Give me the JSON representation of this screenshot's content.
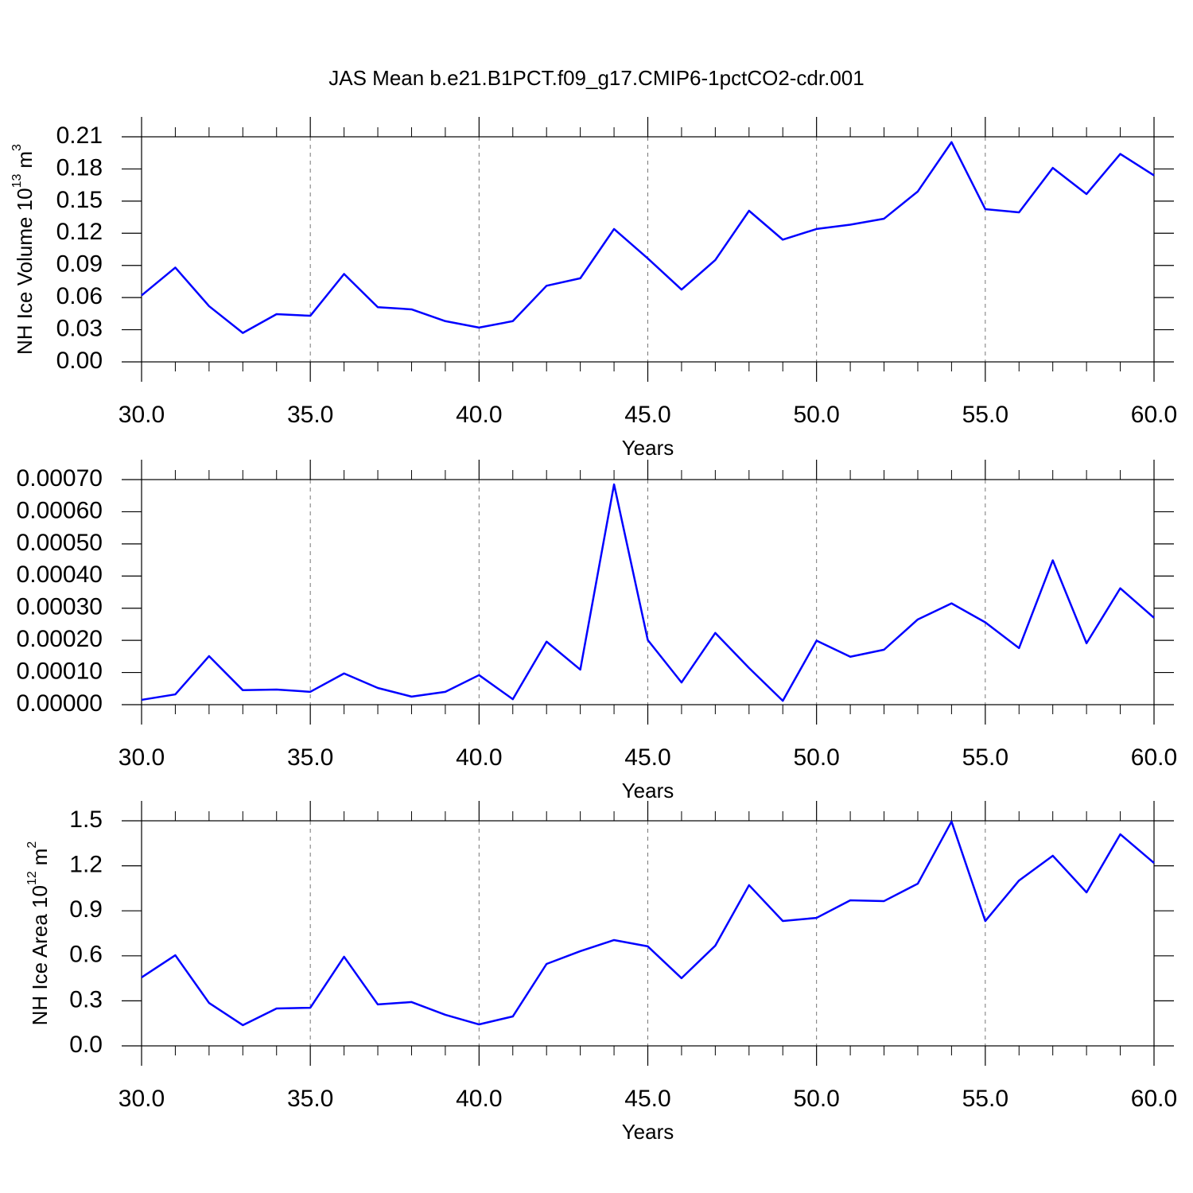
{
  "chart_data": [
    {
      "type": "line",
      "title": "JAS Mean b.e21.B1PCT.f09_g17.CMIP6-1pctCO2-cdr.001",
      "ylabel": {
        "text": "NH Ice Volume 10",
        "exponent": "13",
        "unit": "m",
        "unit_exponent": "3"
      },
      "xlabel": "Years",
      "x": [
        30,
        31,
        32,
        33,
        34,
        35,
        36,
        37,
        38,
        39,
        40,
        41,
        42,
        43,
        44,
        45,
        46,
        47,
        48,
        49,
        50,
        51,
        52,
        53,
        54,
        55,
        56,
        57,
        58,
        59,
        60
      ],
      "values": [
        0.062,
        0.088,
        0.052,
        0.027,
        0.0445,
        0.043,
        0.082,
        0.051,
        0.049,
        0.038,
        0.032,
        0.038,
        0.071,
        0.078,
        0.124,
        0.0965,
        0.0675,
        0.095,
        0.141,
        0.114,
        0.124,
        0.128,
        0.1336,
        0.159,
        0.205,
        0.1425,
        0.1395,
        0.181,
        0.1566,
        0.194,
        0.174
      ],
      "color": "#0000ff",
      "xlim": [
        30,
        60
      ],
      "xticks": [
        {
          "value": 30,
          "label": "30.0"
        },
        {
          "value": 35,
          "label": "35.0"
        },
        {
          "value": 40,
          "label": "40.0"
        },
        {
          "value": 45,
          "label": "45.0"
        },
        {
          "value": 50,
          "label": "50.0"
        },
        {
          "value": 55,
          "label": "55.0"
        },
        {
          "value": 60,
          "label": "60.0"
        }
      ],
      "xminorticks": [
        31,
        32,
        33,
        34,
        36,
        37,
        38,
        39,
        41,
        42,
        43,
        44,
        46,
        47,
        48,
        49,
        51,
        52,
        53,
        54,
        56,
        57,
        58,
        59
      ],
      "ylim": [
        0,
        0.21
      ],
      "yticks": [
        {
          "value": 0,
          "label": "0.00"
        },
        0.03,
        0.06,
        0.09,
        0.12,
        0.15,
        0.18,
        0.21
      ],
      "xgrid": true
    },
    {
      "type": "line",
      "xlabel": "Years",
      "x": [
        30,
        31,
        32,
        33,
        34,
        35,
        36,
        37,
        38,
        39,
        40,
        41,
        42,
        43,
        44,
        45,
        46,
        47,
        48,
        49,
        50,
        51,
        52,
        53,
        54,
        55,
        56,
        57,
        58,
        59,
        60
      ],
      "values": [
        1.5e-05,
        3.2e-05,
        0.000151,
        4.5e-05,
        4.7e-05,
        4e-05,
        9.7e-05,
        5.2e-05,
        2.5e-05,
        4e-05,
        9.2e-05,
        1.7e-05,
        0.000196,
        0.000109,
        0.000685,
        0.000201,
        6.9e-05,
        0.000223,
        0.000114,
        1.2e-05,
        0.000199,
        0.000149,
        0.000171,
        0.000265,
        0.000315,
        0.000256,
        0.000176,
        0.000449,
        0.000191,
        0.000362,
        0.00027
      ],
      "color": "#0000ff",
      "xlim": [
        30,
        60
      ],
      "xticks": [
        {
          "value": 30,
          "label": "30.0"
        },
        {
          "value": 35,
          "label": "35.0"
        },
        {
          "value": 40,
          "label": "40.0"
        },
        {
          "value": 45,
          "label": "45.0"
        },
        {
          "value": 50,
          "label": "50.0"
        },
        {
          "value": 55,
          "label": "55.0"
        },
        {
          "value": 60,
          "label": "60.0"
        }
      ],
      "xminorticks": [
        31,
        32,
        33,
        34,
        36,
        37,
        38,
        39,
        41,
        42,
        43,
        44,
        46,
        47,
        48,
        49,
        51,
        52,
        53,
        54,
        56,
        57,
        58,
        59
      ],
      "ylim": [
        0,
        0.0007
      ],
      "yticks": [
        {
          "value": 0,
          "label": "0.00000"
        },
        {
          "value": 0.0001,
          "label": "0.00010"
        },
        {
          "value": 0.0002,
          "label": "0.00020"
        },
        {
          "value": 0.0003,
          "label": "0.00030"
        },
        {
          "value": 0.0004,
          "label": "0.00040"
        },
        {
          "value": 0.0005,
          "label": "0.00050"
        },
        {
          "value": 0.0006,
          "label": "0.00060"
        },
        {
          "value": 0.0007,
          "label": "0.00070"
        }
      ],
      "xgrid": true
    },
    {
      "type": "line",
      "ylabel": {
        "text": "NH Ice Area 10",
        "exponent": "12",
        "unit": "m",
        "unit_exponent": "2"
      },
      "xlabel": "Years",
      "x": [
        30,
        31,
        32,
        33,
        34,
        35,
        36,
        37,
        38,
        39,
        40,
        41,
        42,
        43,
        44,
        45,
        46,
        47,
        48,
        49,
        50,
        51,
        52,
        53,
        54,
        55,
        56,
        57,
        58,
        59,
        60
      ],
      "values": [
        0.456,
        0.604,
        0.286,
        0.138,
        0.249,
        0.254,
        0.594,
        0.276,
        0.292,
        0.207,
        0.143,
        0.196,
        0.546,
        0.631,
        0.705,
        0.663,
        0.451,
        0.668,
        1.071,
        0.832,
        0.853,
        0.97,
        0.965,
        1.081,
        1.495,
        0.832,
        1.102,
        1.267,
        1.023,
        1.41,
        1.219
      ],
      "color": "#0000ff",
      "xlim": [
        30,
        60
      ],
      "xticks": [
        {
          "value": 30,
          "label": "30.0"
        },
        {
          "value": 35,
          "label": "35.0"
        },
        {
          "value": 40,
          "label": "40.0"
        },
        {
          "value": 45,
          "label": "45.0"
        },
        {
          "value": 50,
          "label": "50.0"
        },
        {
          "value": 55,
          "label": "55.0"
        },
        {
          "value": 60,
          "label": "60.0"
        }
      ],
      "xminorticks": [
        31,
        32,
        33,
        34,
        36,
        37,
        38,
        39,
        41,
        42,
        43,
        44,
        46,
        47,
        48,
        49,
        51,
        52,
        53,
        54,
        56,
        57,
        58,
        59
      ],
      "ylim": [
        0,
        1.5
      ],
      "yticks": [
        {
          "value": 0,
          "label": "0.0"
        },
        0.3,
        0.6,
        0.9,
        1.2,
        1.5
      ],
      "xgrid": true
    }
  ]
}
